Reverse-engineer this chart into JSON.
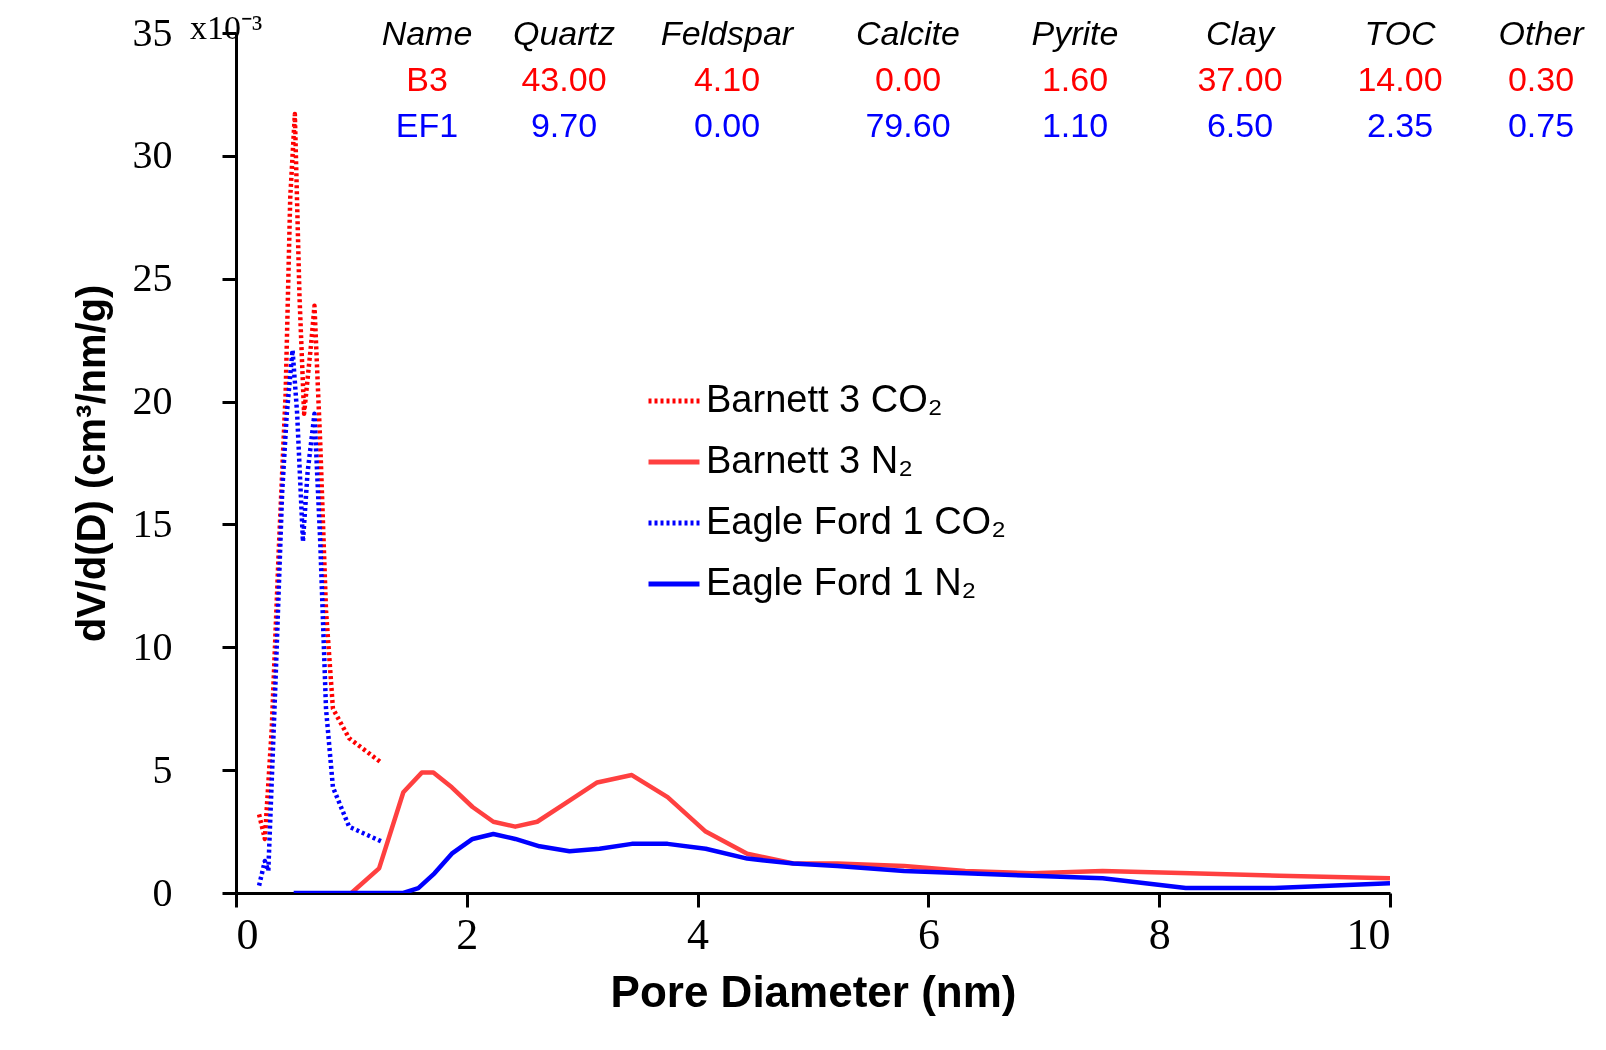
{
  "chart_data": {
    "type": "line",
    "xlabel": "Pore Diameter (nm)",
    "ylabel": "dV/d(D) (cm³/nm/g)",
    "xlim": [
      0,
      10
    ],
    "xticks": [
      0,
      2,
      4,
      6,
      8,
      10
    ],
    "ylim": [
      0,
      35
    ],
    "yticks": [
      0,
      5,
      10,
      15,
      20,
      25,
      30,
      35
    ],
    "legend": "right",
    "series": [
      {
        "name": "Barnett 3 CO₂",
        "color": "#ff0000",
        "line_style": "dotted",
        "x": [
          0.2,
          0.25,
          0.31,
          0.37,
          0.43,
          0.47,
          0.51,
          0.55,
          0.59,
          0.65,
          0.68,
          0.73,
          0.78,
          0.84,
          0.98,
          1.26
        ],
        "values": [
          3.2,
          2.2,
          6.7,
          13.9,
          20.3,
          28.3,
          31.7,
          24.3,
          19.5,
          22.3,
          23.9,
          18.3,
          11.5,
          7.5,
          6.3,
          5.3
        ]
      },
      {
        "name": "Barnett 3 N₂",
        "color": "#ff4040",
        "line_style": "solid",
        "x": [
          1.0,
          1.24,
          1.45,
          1.61,
          1.71,
          1.87,
          2.05,
          2.23,
          2.42,
          2.61,
          2.87,
          3.13,
          3.43,
          3.74,
          4.07,
          4.43,
          4.83,
          5.21,
          5.79,
          6.32,
          6.9,
          7.51,
          8.27,
          9.04,
          10
        ],
        "values": [
          0,
          1.0,
          4.1,
          4.9,
          4.9,
          4.3,
          3.5,
          2.9,
          2.7,
          2.9,
          3.7,
          4.5,
          4.8,
          3.9,
          2.5,
          1.6,
          1.2,
          1.2,
          1.1,
          0.9,
          0.8,
          0.9,
          0.8,
          0.7,
          0.6
        ]
      },
      {
        "name": "Eagle Ford 1 CO₂",
        "color": "#0000ff",
        "line_style": "dotted",
        "x": [
          0.2,
          0.25,
          0.28,
          0.34,
          0.4,
          0.44,
          0.49,
          0.53,
          0.58,
          0.62,
          0.68,
          0.73,
          0.78,
          0.84,
          0.98,
          1.26
        ],
        "values": [
          0.3,
          1.3,
          0.9,
          8.3,
          16.3,
          19.5,
          22.1,
          19.5,
          14.3,
          17.1,
          19.5,
          14.3,
          7.5,
          4.3,
          2.7,
          2.1
        ]
      },
      {
        "name": "Eagle Ford 1 N₂",
        "color": "#0000ff",
        "line_style": "solid",
        "x": [
          0.5,
          1.3,
          1.45,
          1.58,
          1.72,
          1.87,
          2.05,
          2.23,
          2.42,
          2.63,
          2.89,
          3.15,
          3.43,
          3.74,
          4.07,
          4.43,
          4.83,
          5.21,
          5.79,
          6.32,
          6.9,
          7.51,
          8.23,
          9.0,
          10
        ],
        "values": [
          0,
          0,
          0,
          0.2,
          0.8,
          1.6,
          2.2,
          2.4,
          2.2,
          1.9,
          1.7,
          1.8,
          2.0,
          2.0,
          1.8,
          1.4,
          1.2,
          1.1,
          0.9,
          0.8,
          0.7,
          0.6,
          0.2,
          0.2,
          0.4
        ]
      }
    ],
    "annotations": [
      "Name",
      "Quartz",
      "Feldspar",
      "Calcite",
      "Pyrite",
      "Clay",
      "TOC",
      "Other",
      "B3",
      "43.00",
      "4.10",
      "0.00",
      "1.60",
      "37.00",
      "14.00",
      "0.30",
      "EF1",
      "9.70",
      "0.00",
      "79.60",
      "1.10",
      "6.50",
      "2.35",
      "0.75",
      "x10⁻³"
    ]
  }
}
